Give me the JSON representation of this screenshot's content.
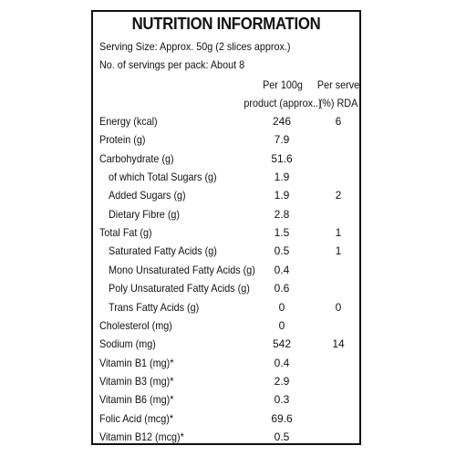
{
  "title": "NUTRITION INFORMATION",
  "serving_size": "Serving Size: Approx. 50g (2 slices approx.)",
  "servings_per_pack": "No. of servings per pack: About 8",
  "columns": {
    "per100_line1": "Per 100g",
    "per100_line2": "product (approx..)",
    "rda_line1": "Per serve",
    "rda_line2": "(%) RDA"
  },
  "rows": [
    {
      "label": "Energy (kcal)",
      "per100": "246",
      "rda": "6",
      "indent": false
    },
    {
      "label": "Protein (g)",
      "per100": "7.9",
      "rda": "",
      "indent": false
    },
    {
      "label": "Carbohydrate (g)",
      "per100": "51.6",
      "rda": "",
      "indent": false
    },
    {
      "label": "of which Total Sugars (g)",
      "per100": "1.9",
      "rda": "",
      "indent": true
    },
    {
      "label": "Added Sugars (g)",
      "per100": "1.9",
      "rda": "2",
      "indent": true
    },
    {
      "label": "Dietary Fibre (g)",
      "per100": "2.8",
      "rda": "",
      "indent": true
    },
    {
      "label": "Total Fat (g)",
      "per100": "1.5",
      "rda": "1",
      "indent": false
    },
    {
      "label": "Saturated Fatty Acids (g)",
      "per100": "0.5",
      "rda": "1",
      "indent": true
    },
    {
      "label": "Mono Unsaturated Fatty Acids (g)",
      "per100": "0.4",
      "rda": "",
      "indent": true
    },
    {
      "label": "Poly Unsaturated Fatty Acids (g)",
      "per100": "0.6",
      "rda": "",
      "indent": true
    },
    {
      "label": "Trans Fatty Acids (g)",
      "per100": "0",
      "rda": "0",
      "indent": true
    },
    {
      "label": "Cholesterol (mg)",
      "per100": "0",
      "rda": "",
      "indent": false
    },
    {
      "label": "Sodium (mg)",
      "per100": "542",
      "rda": "14",
      "indent": false
    },
    {
      "label": "Vitamin B1 (mg)*",
      "per100": "0.4",
      "rda": "",
      "indent": false
    },
    {
      "label": "Vitamin B3 (mg)*",
      "per100": "2.9",
      "rda": "",
      "indent": false
    },
    {
      "label": "Vitamin B6 (mg)*",
      "per100": "0.3",
      "rda": "",
      "indent": false
    },
    {
      "label": "Folic Acid (mcg)*",
      "per100": "69.6",
      "rda": "",
      "indent": false
    },
    {
      "label": "Vitamin B12 (mcg)*",
      "per100": "0.5",
      "rda": "",
      "indent": false
    }
  ]
}
